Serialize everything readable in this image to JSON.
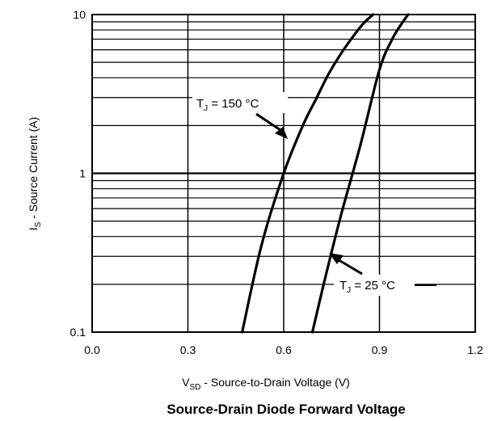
{
  "chart_data": {
    "type": "line",
    "title": "Source-Drain Diode Forward Voltage",
    "xlabel": {
      "main": "V",
      "sub": "SD",
      "rest": " - Source-to-Drain Voltage (V)"
    },
    "ylabel": {
      "main": "I",
      "sub": "S",
      "rest": " - Source Current (A)"
    },
    "xlim": [
      0.0,
      1.2
    ],
    "ylim": [
      0.1,
      10
    ],
    "yscale": "log",
    "grid": true,
    "x_ticks": [
      "0.0",
      "0.3",
      "0.6",
      "0.9",
      "1.2"
    ],
    "y_ticks": [
      "0.1",
      "1",
      "10"
    ],
    "series": [
      {
        "label": {
          "main": "T",
          "sub": "J",
          "rest": " = 150 °C"
        },
        "color": "#000000",
        "x": [
          0.47,
          0.53,
          0.6,
          0.66,
          0.7,
          0.74,
          0.78,
          0.82,
          0.85,
          0.88
        ],
        "y": [
          0.1,
          0.35,
          1.0,
          2.0,
          2.9,
          4.2,
          5.7,
          7.4,
          8.8,
          10.0
        ]
      },
      {
        "label": {
          "main": "T",
          "sub": "J",
          "rest": " = 25 °C"
        },
        "color": "#000000",
        "x": [
          0.69,
          0.73,
          0.78,
          0.84,
          0.9,
          0.94,
          0.97,
          0.99
        ],
        "y": [
          0.1,
          0.22,
          0.55,
          1.5,
          4.5,
          7.0,
          8.8,
          10.0
        ]
      }
    ]
  }
}
